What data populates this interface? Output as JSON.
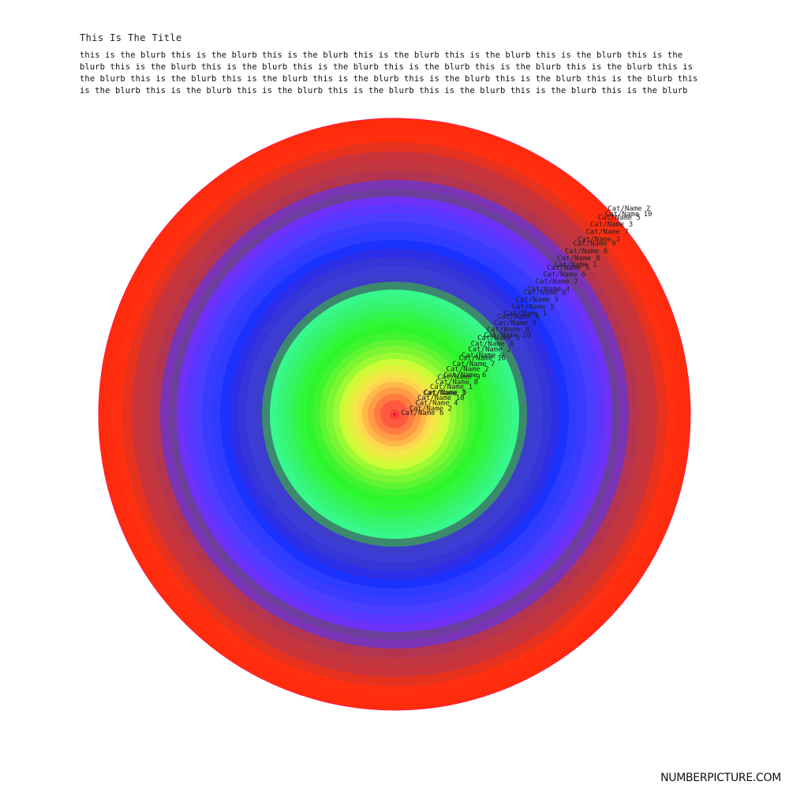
{
  "header": {
    "title": "This Is The Title",
    "blurb": "this is the blurb this is the blurb this is the blurb this is the blurb this is the blurb this is the blurb this is the blurb this is the blurb this is the blurb this is the blurb this is the blurb this is the blurb this is the blurb this is the blurb this is the blurb this is the blurb this is the blurb this is the blurb this is the blurb this is the blurb this is the blurb this is the blurb this is the blurb this is the blurb this is the blurb this is the blurb this is the blurb"
  },
  "footer": {
    "brand": "NUMBERPICTURE.COM"
  },
  "chart_data": {
    "type": "radial-rings",
    "title": "This Is The Title",
    "rings": [
      {
        "label": "Cat/Name 6",
        "radius": 6,
        "color": "#ff3a3a"
      },
      {
        "label": "Cat/Name 2",
        "radius": 18,
        "color": "#ff5a3f"
      },
      {
        "label": "Cat/Name 4",
        "radius": 26,
        "color": "#ff7b41"
      },
      {
        "label": "Cat/Name 10",
        "radius": 34,
        "color": "#ff9c45"
      },
      {
        "label": "Cat/Name 3",
        "radius": 41,
        "color": "#ffb94a"
      },
      {
        "label": "Cat/Name 5",
        "radius": 47,
        "color": "#ffd64f"
      },
      {
        "label": "Cat/Name 1",
        "radius": 55,
        "color": "#f3e845"
      },
      {
        "label": "Cat/Name 8",
        "radius": 62,
        "color": "#e2f23c"
      },
      {
        "label": "Cat/Name 9",
        "radius": 70,
        "color": "#cdfc37"
      },
      {
        "label": "Cat/Name 6",
        "radius": 78,
        "color": "#9cfa35"
      },
      {
        "label": "Cat/Name 2",
        "radius": 87,
        "color": "#7cf633"
      },
      {
        "label": "Cat/Name 7",
        "radius": 95,
        "color": "#5ef532"
      },
      {
        "label": "Cat/Name 10",
        "radius": 104,
        "color": "#40f42f"
      },
      {
        "label": "Cat/Name 9",
        "radius": 113,
        "color": "#2cf52c"
      },
      {
        "label": "Cat/Name 2",
        "radius": 122,
        "color": "#2ff838"
      },
      {
        "label": "Cat/Name 4",
        "radius": 131,
        "color": "#32f650"
      },
      {
        "label": "Cat/Name 3",
        "radius": 140,
        "color": "#34f565"
      },
      {
        "label": "Cat/Name 10",
        "radius": 149,
        "color": "#36f579"
      },
      {
        "label": "Cat/Name 8",
        "radius": 158,
        "color": "#37f98a"
      },
      {
        "label": "Cat/Name 9",
        "radius": 168,
        "color": "#3b8a6e"
      },
      {
        "label": "Cat/Name 6",
        "radius": 178,
        "color": "#3d3dcc"
      },
      {
        "label": "Cat/Name 1",
        "radius": 188,
        "color": "#3b3ed6"
      },
      {
        "label": "Cat/Name 5",
        "radius": 199,
        "color": "#3535d8"
      },
      {
        "label": "Cat/Name 3",
        "radius": 210,
        "color": "#2c2ee8"
      },
      {
        "label": "Cat/Name 8",
        "radius": 221,
        "color": "#1b32ff"
      },
      {
        "label": "Cat/Name 4",
        "radius": 232,
        "color": "#2d3cff"
      },
      {
        "label": "Cat/Name 7",
        "radius": 244,
        "color": "#3a3bff"
      },
      {
        "label": "Cat/Name 6",
        "radius": 255,
        "color": "#4b3eff"
      },
      {
        "label": "Cat/Name 5",
        "radius": 266,
        "color": "#5a36ff"
      },
      {
        "label": "Cat/Name 1",
        "radius": 276,
        "color": "#6e31f8"
      },
      {
        "label": "Cat/Name 8",
        "radius": 286,
        "color": "#6d3f9c"
      },
      {
        "label": "Cat/Name 6",
        "radius": 297,
        "color": "#7a34b5"
      },
      {
        "label": "Cat/Name 9",
        "radius": 309,
        "color": "#b4354f"
      },
      {
        "label": "Cat/Name 2",
        "radius": 321,
        "color": "#c2363f"
      },
      {
        "label": "Cat/Name 7",
        "radius": 333,
        "color": "#c9343a"
      },
      {
        "label": "Cat/Name 3",
        "radius": 345,
        "color": "#e7321e"
      },
      {
        "label": "Cat/Name 5",
        "radius": 356,
        "color": "#ff2f10"
      },
      {
        "label": "Cat/Name 10",
        "radius": 366,
        "color": "#ff2d0f"
      },
      {
        "label": "Cat/Name 2",
        "radius": 375,
        "color": "#ff2c0c"
      }
    ]
  }
}
